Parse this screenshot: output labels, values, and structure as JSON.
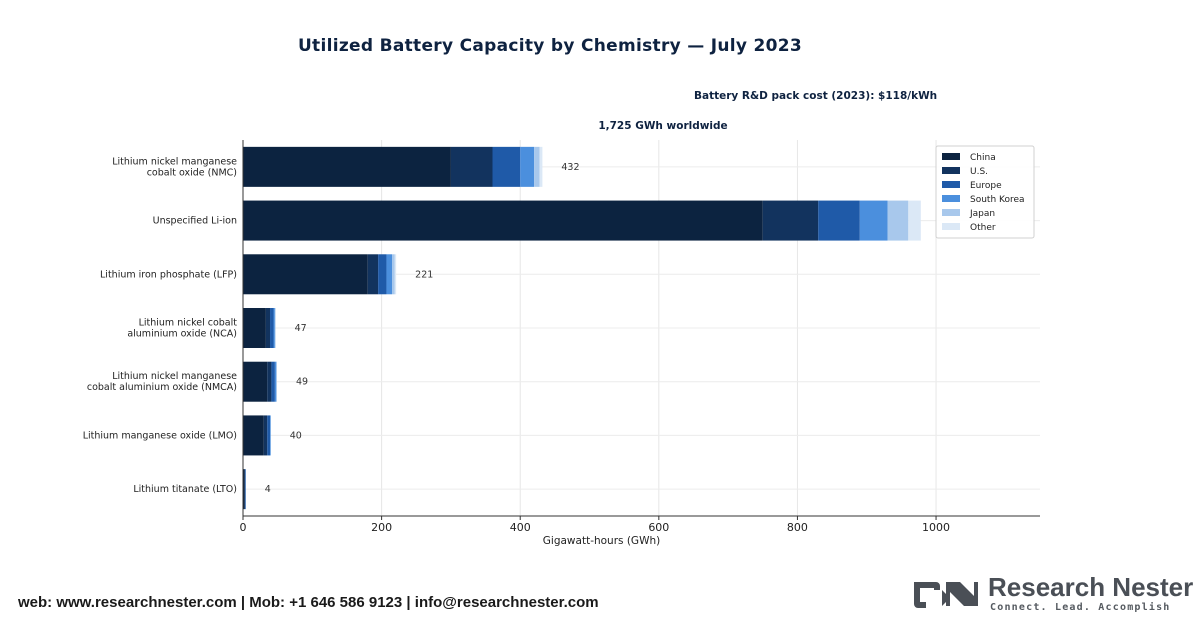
{
  "chart_data": {
    "type": "bar",
    "orientation": "horizontal",
    "stacked": true,
    "title": "Utilized Battery Capacity by Chemistry — July 2023",
    "annotations": [
      "Battery R&D pack cost (2023): $118/kWh",
      "1,725 GWh worldwide"
    ],
    "xlabel": "Gigawatt-hours (GWh)",
    "ylabel": "",
    "xlim": [
      0,
      1150
    ],
    "xticks": [
      0,
      200,
      400,
      600,
      800,
      1000
    ],
    "grid": true,
    "legend_position": "top-right",
    "categories": [
      "Lithium nickel manganese cobalt oxide (NMC)",
      "Unspecified Li-ion",
      "Lithium iron phosphate (LFP)",
      "Lithium nickel cobalt aluminium oxide (NCA)",
      "Lithium nickel manganese cobalt aluminium oxide (NMCA)",
      "Lithium manganese oxide (LMO)",
      "Lithium titanate (LTO)"
    ],
    "category_lines": [
      [
        "Lithium nickel manganese",
        "cobalt oxide (NMC)"
      ],
      [
        "Unspecified Li-ion"
      ],
      [
        "Lithium iron phosphate (LFP)"
      ],
      [
        "Lithium nickel cobalt",
        "aluminium oxide (NCA)"
      ],
      [
        "Lithium nickel manganese",
        "cobalt aluminium oxide (NMCA)"
      ],
      [
        "Lithium manganese oxide (LMO)"
      ],
      [
        "Lithium titanate (LTO)"
      ]
    ],
    "totals_labels": [
      "432",
      "",
      "221",
      "47",
      "49",
      "40",
      "4"
    ],
    "series": [
      {
        "name": "China",
        "color": "#0c2340",
        "values": [
          300,
          750,
          180,
          33,
          35,
          30,
          2
        ]
      },
      {
        "name": "U.S.",
        "color": "#12335e",
        "values": [
          60,
          80,
          15,
          6,
          6,
          5,
          1
        ]
      },
      {
        "name": "Europe",
        "color": "#1f5aa8",
        "values": [
          40,
          60,
          12,
          5,
          5,
          4,
          1
        ]
      },
      {
        "name": "South Korea",
        "color": "#4b8fdd",
        "values": [
          20,
          40,
          8,
          2,
          2,
          1,
          0
        ]
      },
      {
        "name": "Japan",
        "color": "#a8c8ec",
        "values": [
          8,
          30,
          4,
          1,
          1,
          0,
          0
        ]
      },
      {
        "name": "Other",
        "color": "#dbe8f6",
        "values": [
          4,
          18,
          2,
          0,
          0,
          0,
          0
        ]
      }
    ]
  },
  "footer": {
    "contact": "web: www.researchnester.com | Mob: +1 646 586 9123 | info@researchnester.com"
  },
  "brand": {
    "name": "Research Nester",
    "tagline": "Connect. Lead. Accomplish"
  }
}
